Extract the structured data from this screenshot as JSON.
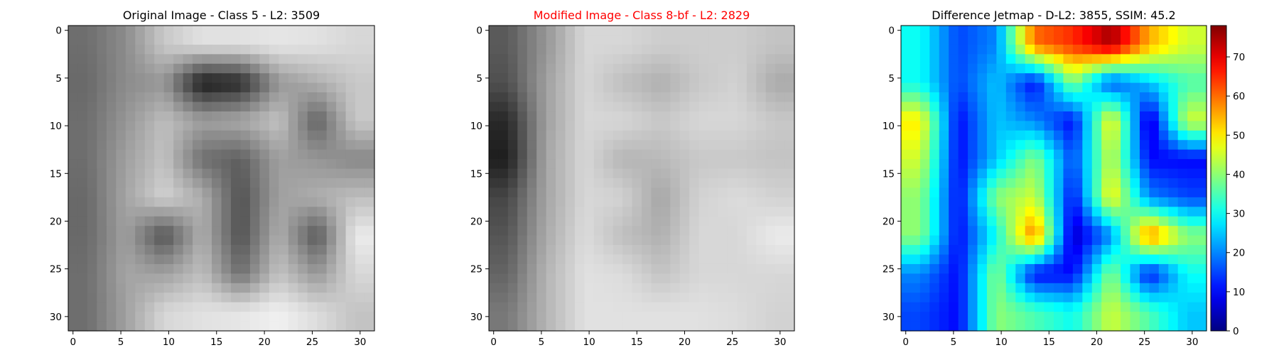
{
  "chart_data": [
    {
      "type": "heatmap",
      "title": "Original Image - Class 5 - L2: 3509",
      "title_color": "#000000",
      "colormap": "gray",
      "grid_size": 32,
      "xticks": [
        0,
        5,
        10,
        15,
        20,
        25,
        30
      ],
      "yticks": [
        0,
        5,
        10,
        15,
        20,
        25,
        30
      ],
      "description_rows": "approximate 8x8 block intensities (0=black, 255=white); digit 5 shape",
      "values": [
        [
          110,
          140,
          200,
          225,
          225,
          230,
          225,
          215
        ],
        [
          105,
          140,
          150,
          25,
          40,
          150,
          175,
          200
        ],
        [
          110,
          150,
          190,
          160,
          170,
          195,
          95,
          200
        ],
        [
          110,
          160,
          195,
          110,
          95,
          160,
          150,
          135
        ],
        [
          105,
          165,
          210,
          175,
          80,
          160,
          175,
          190
        ],
        [
          105,
          160,
          80,
          175,
          80,
          175,
          85,
          235
        ],
        [
          110,
          165,
          160,
          190,
          110,
          195,
          150,
          215
        ],
        [
          110,
          160,
          215,
          225,
          230,
          240,
          220,
          195
        ]
      ]
    },
    {
      "type": "heatmap",
      "title": "Modified Image - Class 8-bf - L2: 2829",
      "title_color": "#ff0000",
      "colormap": "gray",
      "grid_size": 32,
      "xticks": [
        0,
        5,
        10,
        15,
        20,
        25,
        30
      ],
      "yticks": [
        0,
        5,
        10,
        15,
        20,
        25,
        30
      ],
      "values": [
        [
          90,
          150,
          215,
          215,
          205,
          205,
          205,
          195
        ],
        [
          80,
          160,
          215,
          190,
          175,
          200,
          210,
          170
        ],
        [
          40,
          160,
          215,
          215,
          200,
          215,
          215,
          200
        ],
        [
          30,
          165,
          215,
          180,
          185,
          200,
          200,
          195
        ],
        [
          70,
          165,
          215,
          210,
          165,
          210,
          220,
          210
        ],
        [
          85,
          170,
          220,
          190,
          175,
          215,
          215,
          235
        ],
        [
          100,
          180,
          225,
          220,
          195,
          215,
          215,
          215
        ],
        [
          120,
          180,
          225,
          225,
          225,
          225,
          220,
          210
        ]
      ]
    },
    {
      "type": "heatmap",
      "title": "Difference Jetmap - D-L2: 3855, SSIM: 45.2",
      "title_color": "#000000",
      "colormap": "jet",
      "grid_size": 32,
      "xticks": [
        0,
        5,
        10,
        15,
        20,
        25,
        30
      ],
      "yticks": [
        0,
        5,
        10,
        15,
        20,
        25,
        30
      ],
      "colorbar_ticks": [
        0,
        10,
        20,
        30,
        40,
        50,
        60,
        70
      ],
      "colorbar_range": [
        0,
        78
      ],
      "values": [
        [
          30,
          15,
          20,
          60,
          65,
          75,
          55,
          45
        ],
        [
          30,
          15,
          25,
          10,
          40,
          15,
          25,
          35
        ],
        [
          50,
          10,
          25,
          20,
          10,
          50,
          5,
          45
        ],
        [
          45,
          10,
          25,
          40,
          15,
          45,
          10,
          10
        ],
        [
          40,
          10,
          40,
          45,
          10,
          50,
          20,
          15
        ],
        [
          40,
          10,
          30,
          60,
          5,
          20,
          60,
          40
        ],
        [
          20,
          10,
          40,
          10,
          10,
          40,
          10,
          30
        ],
        [
          15,
          10,
          40,
          35,
          30,
          45,
          35,
          25
        ]
      ]
    }
  ]
}
